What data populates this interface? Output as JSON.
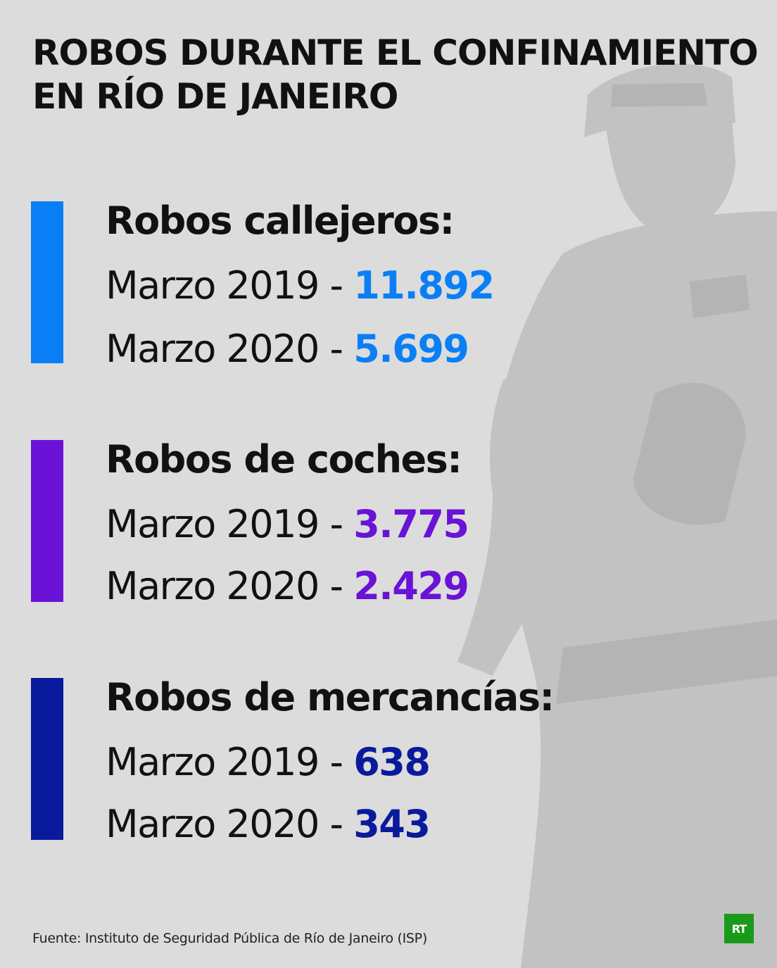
{
  "title_line1": "ROBOS DURANTE EL CONFINAMIENTO",
  "title_line2": "EN RÍO DE JANEIRO",
  "sections": [
    {
      "heading": "Robos callejeros:",
      "color": "#0a7ff5",
      "rows": [
        {
          "label": "Marzo 2019",
          "sep": " - ",
          "value": "11.892"
        },
        {
          "label": "Marzo 2020",
          "sep": " - ",
          "value": "5.699"
        }
      ]
    },
    {
      "heading": "Robos de coches:",
      "color": "#6a12d6",
      "rows": [
        {
          "label": "Marzo 2019",
          "sep": " - ",
          "value": "3.775"
        },
        {
          "label": "Marzo 2020",
          "sep": " - ",
          "value": "2.429"
        }
      ]
    },
    {
      "heading": "Robos de mercancías:",
      "color": "#0a1a9c",
      "rows": [
        {
          "label": "Marzo 2019",
          "sep": " - ",
          "value": "638"
        },
        {
          "label": "Marzo 2020",
          "sep": " - ",
          "value": "343"
        }
      ]
    }
  ],
  "source": "Fuente: Instituto de Seguridad Pública de Río de Janeiro (ISP)",
  "logo_text": "RT",
  "logo_color": "#1a9a1a",
  "background_image": "police-officer-photo",
  "background_color": "#dcdcdc"
}
